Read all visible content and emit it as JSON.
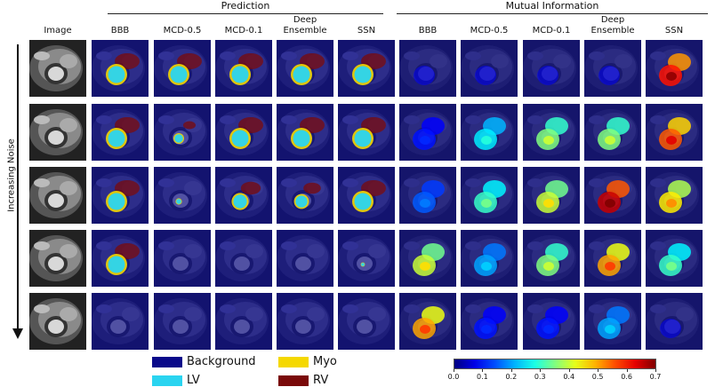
{
  "groups": {
    "prediction": "Prediction",
    "mutual_information": "Mutual Information"
  },
  "columns": {
    "image": "Image",
    "prediction": [
      "BBB",
      "MCD-0.5",
      "MCD-0.1",
      "Deep\nEnsemble",
      "SSN"
    ],
    "mutual_information": [
      "BBB",
      "MCD-0.5",
      "MCD-0.1",
      "Deep\nEnsemble",
      "SSN"
    ]
  },
  "row_axis_label": "Increasing Noise",
  "segmentation_legend": [
    {
      "label": "Background",
      "color": "#0a0a8a"
    },
    {
      "label": "Myo",
      "color": "#f5d800"
    },
    {
      "label": "LV",
      "color": "#2ad4f0"
    },
    {
      "label": "RV",
      "color": "#7a0a0a"
    }
  ],
  "colorbar": {
    "ticks": [
      "0.0",
      "0.1",
      "0.2",
      "0.3",
      "0.4",
      "0.5",
      "0.6",
      "0.7"
    ],
    "min": 0.0,
    "max": 0.7,
    "colormap": "jet"
  },
  "prediction_overlays": [
    [
      1,
      1,
      1,
      1,
      1
    ],
    [
      1,
      0.5,
      1,
      1,
      1
    ],
    [
      1,
      0.3,
      0.8,
      0.7,
      1
    ],
    [
      1,
      0,
      0,
      0,
      0.2
    ],
    [
      0,
      0,
      0,
      0,
      0
    ]
  ],
  "mi_levels": [
    [
      0.05,
      0.05,
      0.05,
      0.05,
      0.6
    ],
    [
      0.1,
      0.25,
      0.35,
      0.35,
      0.55
    ],
    [
      0.15,
      0.3,
      0.4,
      0.65,
      0.45
    ],
    [
      0.4,
      0.2,
      0.35,
      0.5,
      0.3
    ],
    [
      0.5,
      0.1,
      0.1,
      0.2,
      0.05
    ]
  ]
}
